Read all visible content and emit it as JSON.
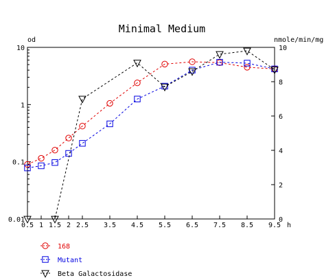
{
  "chart_data": {
    "type": "line",
    "title": "Minimal Medium",
    "x_unit_label": "h",
    "x_ticks": [
      "0.5",
      "1",
      "1.5",
      "2",
      "2.5",
      "3.5",
      "4.5",
      "5.5",
      "6.5",
      "7.5",
      "8.5",
      "9.5"
    ],
    "x_range": [
      0.5,
      9.5
    ],
    "y_left": {
      "label": "od",
      "scale": "log",
      "range": [
        0.01,
        10
      ],
      "ticks": [
        "0.01",
        "0.1",
        "1",
        "10"
      ]
    },
    "y_right": {
      "label": "nmole/min/mg",
      "scale": "linear",
      "range": [
        0,
        10
      ],
      "ticks": [
        "0",
        "2",
        "4",
        "6",
        "8",
        "10"
      ]
    },
    "grid": false,
    "legend_placement": "bottom-left",
    "series": [
      {
        "name": "168",
        "axis": "left",
        "color": "#e00000",
        "marker": "circle",
        "x": [
          0.5,
          1,
          1.5,
          2,
          2.5,
          3.5,
          4.5,
          5.5,
          6.5,
          7.5,
          8.5,
          9.5
        ],
        "y": [
          0.09,
          0.115,
          0.16,
          0.26,
          0.42,
          1.05,
          2.4,
          5.1,
          5.6,
          5.4,
          4.5,
          4.2
        ]
      },
      {
        "name": "Mutant",
        "axis": "left",
        "color": "#0000e0",
        "marker": "square",
        "x": [
          0.5,
          1,
          1.5,
          2,
          2.5,
          3.5,
          4.5,
          5.5,
          6.5,
          7.5,
          8.5,
          9.5
        ],
        "y": [
          0.078,
          0.085,
          0.097,
          0.14,
          0.21,
          0.46,
          1.25,
          2.1,
          4.0,
          5.5,
          5.3,
          4.2
        ]
      },
      {
        "name": "Beta Galactosidase",
        "axis": "right",
        "color": "#000000",
        "marker": "triangle-down",
        "x": [
          0.5,
          1.5,
          2.5,
          4.5,
          5.5,
          6.5,
          7.5,
          8.5,
          9.5
        ],
        "y": [
          0,
          0,
          7.0,
          9.1,
          7.7,
          8.6,
          9.6,
          9.8,
          8.7
        ]
      }
    ]
  }
}
